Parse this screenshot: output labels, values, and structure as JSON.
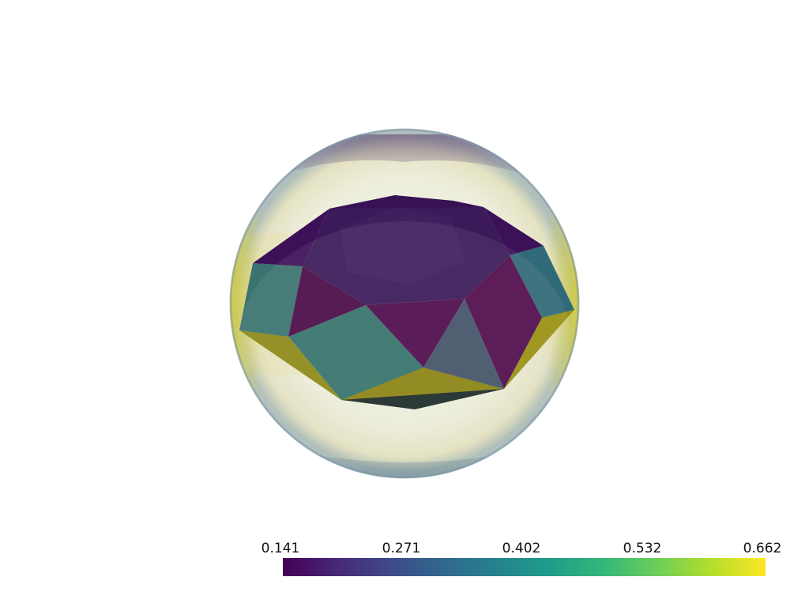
{
  "colormap": {
    "name": "viridis",
    "stops": [
      "#440154",
      "#482878",
      "#3e4a89",
      "#31688e",
      "#26828e",
      "#1f9e89",
      "#35b779",
      "#6ece58",
      "#b5de2b",
      "#fde725"
    ]
  },
  "scalar_bar": {
    "tick_labels": [
      "0.141",
      "0.271",
      "0.402",
      "0.532",
      "0.662"
    ]
  },
  "scene": {
    "background": "#ffffff",
    "outer_sphere_opacity": 0.3
  }
}
